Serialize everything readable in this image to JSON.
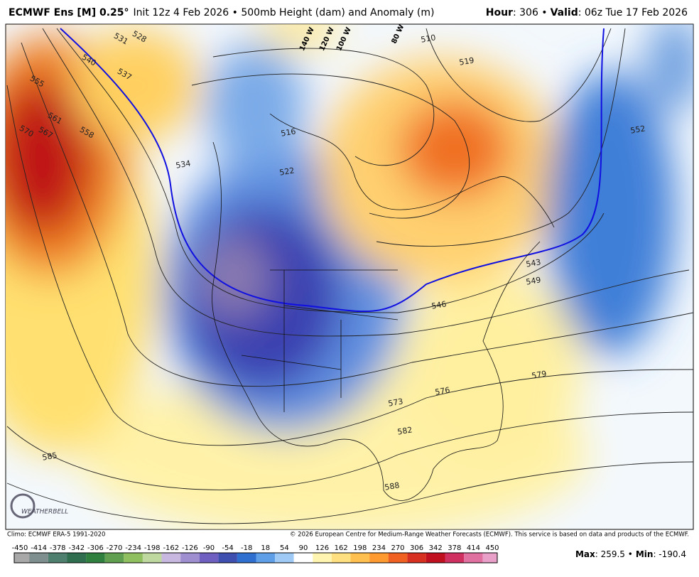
{
  "header": {
    "title_bold": "ECMWF Ens [M] 0.25°",
    "title_rest": "Init 12z 4 Feb 2026 • 500mb Height (dam) and Anomaly (m)",
    "hour_label": "Hour",
    "hour_text": ": 306 •",
    "valid_label": "Valid",
    "valid_text": ": 06z Tue 17 Feb 2026"
  },
  "map": {
    "contour_labels": [
      "531",
      "528",
      "540",
      "537",
      "555",
      "561",
      "558",
      "570",
      "567",
      "534",
      "516",
      "522",
      "510",
      "519",
      "552",
      "543",
      "549",
      "546",
      "579",
      "576",
      "573",
      "582",
      "585",
      "588"
    ],
    "longitude_labels": [
      "140 W",
      "120 W",
      "100 W",
      "80 W"
    ],
    "logo": "WEATHERBELL"
  },
  "footer": {
    "climo": "Climo: ECMWF ERA-5 1991-2020",
    "copyright": "© 2026 European Centre for Medium-Range Weather Forecasts (ECMWF). This service is based on data and products of the ECMWF."
  },
  "colorbar": {
    "ticks": [
      -450,
      -414,
      -378,
      -342,
      -306,
      -270,
      -234,
      -198,
      -162,
      -126,
      -90,
      -54,
      -18,
      18,
      54,
      90,
      126,
      162,
      198,
      234,
      270,
      306,
      342,
      378,
      414,
      450
    ],
    "colors": [
      "#a8a8a8",
      "#7f8f8f",
      "#4f7f6f",
      "#2f6f4f",
      "#2f7f3f",
      "#5f9f4f",
      "#8fbf5f",
      "#bfd89f",
      "#c8b8e0",
      "#9f8fd0",
      "#6f5fc0",
      "#3f4fb0",
      "#2f6fd0",
      "#5f9fe8",
      "#9fcaf5",
      "#ffffff",
      "#fff4b0",
      "#ffe080",
      "#ffc050",
      "#ff9a30",
      "#f06020",
      "#d83020",
      "#c01020",
      "#d03060",
      "#e070a0",
      "#e8a0c8"
    ]
  },
  "stats": {
    "max_label": "Max",
    "max_text": ": 259.5 •",
    "min_label": "Min",
    "min_text": ": -190.4"
  }
}
